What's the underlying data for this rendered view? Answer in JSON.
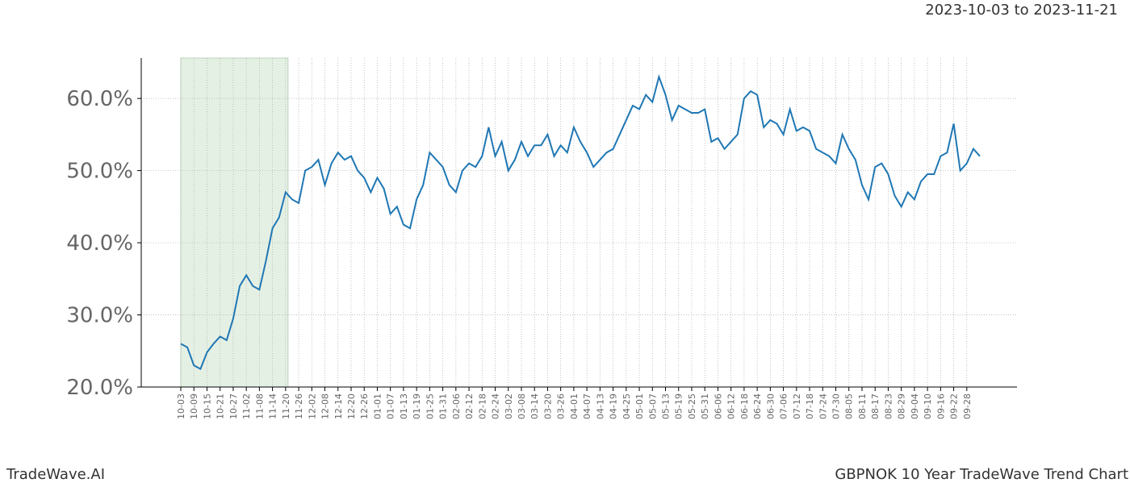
{
  "chart_data": {
    "type": "line",
    "subtitle": "2023-10-03 to 2023-11-21",
    "footer_left": "TradeWave.AI",
    "footer_right": "GBPNOK 10 Year TradeWave Trend Chart",
    "highlight": {
      "start": "10-03",
      "end": "11-20",
      "color": "#e5f0e5"
    },
    "categories": [
      "10-03",
      null,
      "10-09",
      null,
      "10-15",
      null,
      "10-21",
      null,
      "10-27",
      null,
      "11-02",
      null,
      "11-08",
      null,
      "11-14",
      null,
      "11-20",
      null,
      "11-26",
      null,
      "12-02",
      null,
      "12-08",
      null,
      "12-14",
      null,
      "12-20",
      null,
      "12-26",
      null,
      "01-01",
      null,
      "01-07",
      null,
      "01-13",
      null,
      "01-19",
      null,
      "01-25",
      null,
      "01-31",
      null,
      "02-06",
      null,
      "02-12",
      null,
      "02-18",
      null,
      "02-24",
      null,
      "03-02",
      null,
      "03-08",
      null,
      "03-14",
      null,
      "03-20",
      null,
      "03-26",
      null,
      "04-01",
      null,
      "04-07",
      null,
      "04-13",
      null,
      "04-19",
      null,
      "04-25",
      null,
      "05-01",
      null,
      "05-07",
      null,
      "05-13",
      null,
      "05-19",
      null,
      "05-25",
      null,
      "05-31",
      null,
      "06-06",
      null,
      "06-12",
      null,
      "06-18",
      null,
      "06-24",
      null,
      "06-30",
      null,
      "07-06",
      null,
      "07-12",
      null,
      "07-18",
      null,
      "07-24",
      null,
      "07-30",
      null,
      "08-05",
      null,
      "08-11",
      null,
      "08-17",
      null,
      "08-23",
      null,
      "08-29",
      null,
      "09-04",
      null,
      "09-10",
      null,
      "09-16",
      null,
      "09-22",
      null,
      "09-28",
      null,
      null
    ],
    "series": [
      {
        "name": "GBPNOK",
        "color": "#1f77b4",
        "values": [
          26,
          25.5,
          23,
          22.5,
          24.8,
          26,
          27,
          26.5,
          29.5,
          34,
          35.5,
          34,
          33.5,
          37.5,
          42,
          43.5,
          47,
          46,
          45.5,
          50,
          50.5,
          51.5,
          48,
          51,
          52.5,
          51.5,
          52,
          50,
          49,
          47,
          49,
          47.5,
          44,
          45,
          42.5,
          42,
          46,
          48,
          52.5,
          51.5,
          50.5,
          48,
          47,
          50,
          51,
          50.5,
          52,
          56,
          52,
          54,
          50,
          51.5,
          54,
          52,
          53.5,
          53.5,
          55,
          52,
          53.5,
          52.5,
          56,
          54,
          52.5,
          50.5,
          51.5,
          52.5,
          53,
          55,
          57,
          59,
          58.5,
          60.5,
          59.5,
          63,
          60.5,
          57,
          59,
          58.5,
          58,
          58,
          58.5,
          54,
          54.5,
          53,
          54,
          55,
          60,
          61,
          60.5,
          56,
          57,
          56.5,
          55,
          58.5,
          55.5,
          56,
          55.5,
          53,
          52.5,
          52,
          51,
          55,
          53,
          51.5,
          48,
          46,
          50.5,
          51,
          49.5,
          46.5,
          45,
          47,
          46,
          48.5,
          49.5,
          49.5,
          52,
          52.5,
          56.5,
          50,
          51,
          53,
          52
        ]
      }
    ],
    "ylim": [
      20,
      65.6
    ],
    "yticks": [
      {
        "value": 20,
        "label": "20.0%"
      },
      {
        "value": 30,
        "label": "30.0%"
      },
      {
        "value": 40,
        "label": "40.0%"
      },
      {
        "value": 50,
        "label": "50.0%"
      },
      {
        "value": 60,
        "label": "60.0%"
      }
    ],
    "grid": true
  }
}
